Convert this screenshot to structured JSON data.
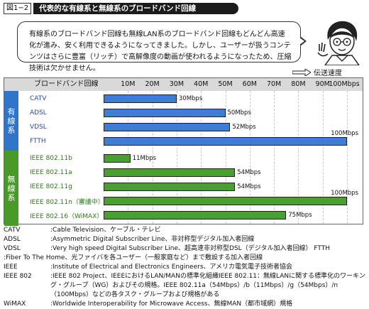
{
  "figure": {
    "number": "図1−2",
    "title": "代表的な有線系と無線系のブロードバンド回線"
  },
  "speech": {
    "text": "有線系のブロードバンド回線も無線LAN系のブロードバンド回線もどんどん高速化が進み、安く利用できるようになってきました。しかし、ユーザーが扱うコンテンツはさらに豊富（リッチ）で高解像度の動画が使われるようになったため、圧縮技術は欠かせません。"
  },
  "speed_axis_label": "伝送速度",
  "chart_data": {
    "type": "bar",
    "header": "ブロードバンド回線",
    "ticks": [
      "10M",
      "20M",
      "30M",
      "40M",
      "50M",
      "60M",
      "70M",
      "80M",
      "90M",
      "100Mbps"
    ],
    "xlim": [
      0,
      100
    ],
    "groups": [
      {
        "name": "有線系",
        "color": "#2f74c8",
        "bars": [
          {
            "label": "CATV",
            "value": 30,
            "text": "30Mbps"
          },
          {
            "label": "ADSL",
            "value": 50,
            "text": "50Mbps"
          },
          {
            "label": "VDSL",
            "value": 52,
            "text": "52Mbps"
          },
          {
            "label": "FTTH",
            "value": 100,
            "text": "100Mbps"
          }
        ]
      },
      {
        "name": "無線系",
        "color": "#4a9a2a",
        "bars": [
          {
            "label": "IEEE 802.11b",
            "value": 11,
            "text": "11Mbps"
          },
          {
            "label": "IEEE 802.11a",
            "value": 54,
            "text": "54Mbps"
          },
          {
            "label": "IEEE 802.11g",
            "value": 54,
            "text": "54Mbps"
          },
          {
            "label": "IEEE 802.11n（審議中）",
            "value": 100,
            "text": "100Mbps"
          },
          {
            "label": "IEEE 802.16（WiMAX）",
            "value": 75,
            "text": "75Mbps"
          }
        ]
      }
    ],
    "colors": {
      "wired": "#2f74c8",
      "wireless": "#4a9a2a",
      "wired_bar": "#3c7dd6",
      "wireless_bar": "#49a02c"
    }
  },
  "notes": [
    {
      "term": "CATV",
      "desc": ":Cable Television、ケーブル・テレビ"
    },
    {
      "term": "ADSL",
      "desc": ":Asymmetric Digital Subscriber Line、非対称型デジタル加入者回線"
    },
    {
      "term": "VDSL",
      "desc": ":Very high speed Digital Subscriber Line、超高速非対称型DSL（デジタル加入者回線） FTTH"
    },
    {
      "term": "",
      "desc": ":Fiber To The Home、光ファイバを各ユーザー（一般家庭など）まで敷設する加入者回線"
    },
    {
      "term": "IEEE",
      "desc": ":Institute of Electrical and Electronics Engineers、アメリカ電気電子技術者協会"
    },
    {
      "term": "IEEE 802",
      "desc": ":IEEE 802 Project、IEEEにおけるLAN/MANの標準化組織IEEE 802.11：無線LANに関する標準化のワーキング・グループ（WG）およびその規格。IEEE 802.11a（54Mbps）/b（11Mbps）/g（54Mbps）/n（100Mbps）などの各タスク・グループおよび規格がある"
    },
    {
      "term": "WiMAX",
      "desc": ":Worldwide Interoperability for Microwave Access、無線MAN（都市域網）規格"
    }
  ]
}
